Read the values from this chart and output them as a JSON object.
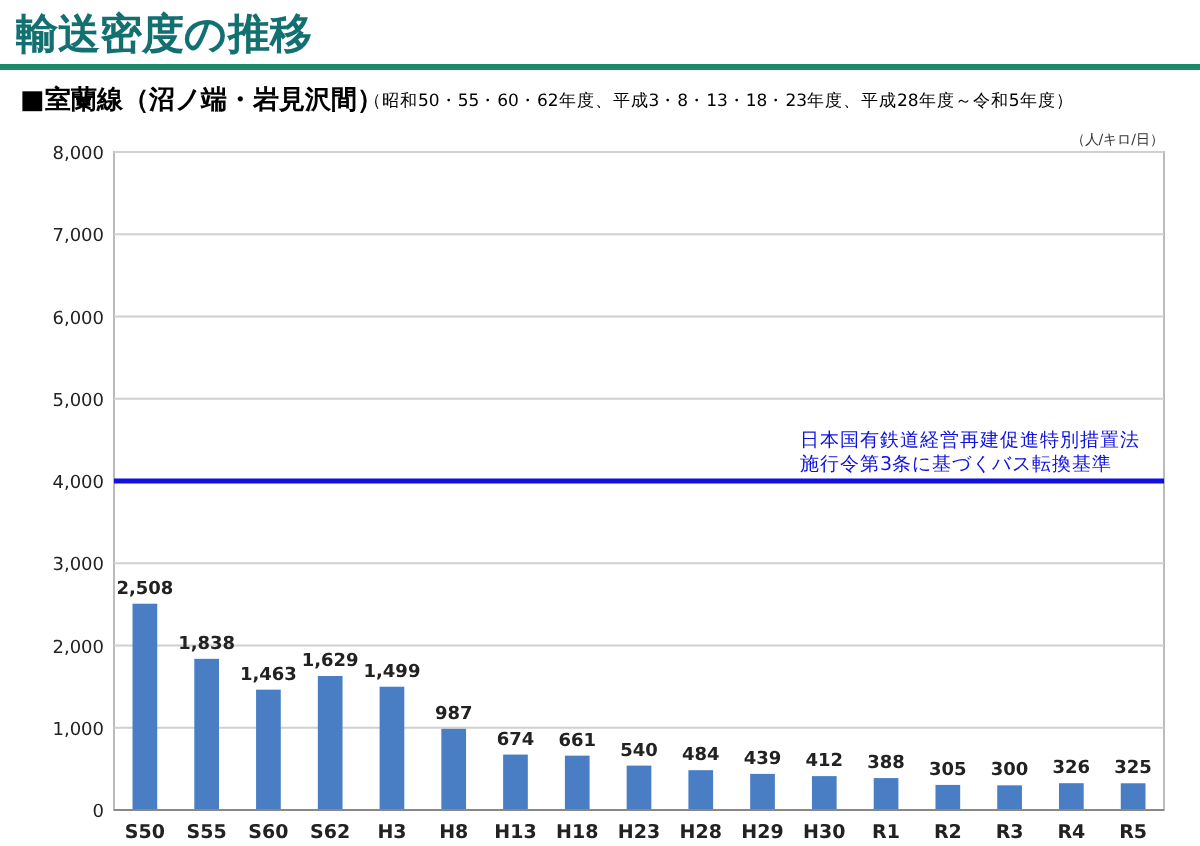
{
  "chart_data": {
    "type": "bar",
    "title": "輸送密度の推移",
    "subtitle": "■室蘭線（沼ノ端・岩見沢間）",
    "ylabel": "（人/キロ/日）",
    "annotations": [
      "（昭和50・55・60・62年度、平成3・8・13・18・23年度、平成28年度～令和5年度）"
    ],
    "categories": [
      "S50",
      "S55",
      "S60",
      "S62",
      "H3",
      "H8",
      "H13",
      "H18",
      "H23",
      "H28",
      "H29",
      "H30",
      "R1",
      "R2",
      "R3",
      "R4",
      "R5"
    ],
    "values": [
      2508,
      1838,
      1463,
      1629,
      1499,
      987,
      674,
      661,
      540,
      484,
      439,
      412,
      388,
      305,
      300,
      326,
      325
    ],
    "value_labels": [
      "2,508",
      "1,838",
      "1,463",
      "1,629",
      "1,499",
      "987",
      "674",
      "661",
      "540",
      "484",
      "439",
      "412",
      "388",
      "305",
      "300",
      "326",
      "325"
    ],
    "color": "#4a7ec4",
    "ylim": [
      0,
      8000
    ],
    "yticks": [
      {
        "value": 0,
        "label": "0"
      },
      {
        "value": 1000,
        "label": "1,000"
      },
      {
        "value": 2000,
        "label": "2,000"
      },
      {
        "value": 3000,
        "label": "3,000"
      },
      {
        "value": 4000,
        "label": "4,000"
      },
      {
        "value": 5000,
        "label": "5,000"
      },
      {
        "value": 6000,
        "label": "6,000"
      },
      {
        "value": 7000,
        "label": "7,000"
      },
      {
        "value": 8000,
        "label": "8,000"
      }
    ],
    "grid": "y",
    "ref_lines": [
      {
        "axis": "y",
        "value": 4000,
        "label": "日本国有鉄道経営再建促進特別措置法施行令第3条に基づくバス転換基準",
        "color": "#1010e0"
      }
    ]
  }
}
